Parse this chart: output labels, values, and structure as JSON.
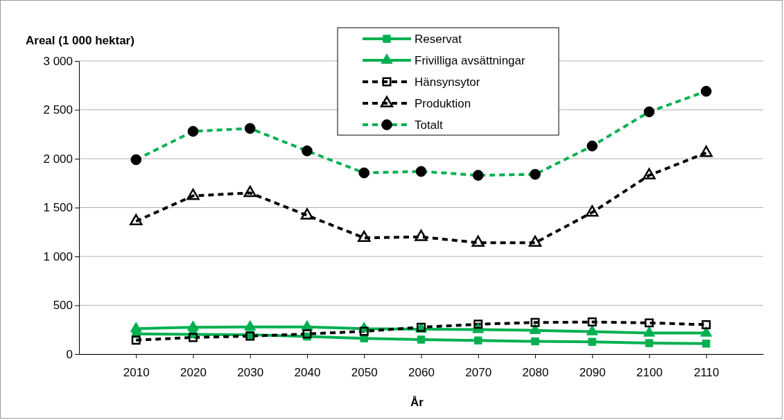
{
  "chart_data": {
    "type": "line",
    "ylabel": "Areal (1 000 hektar)",
    "xlabel": "År",
    "x": [
      2010,
      2020,
      2030,
      2040,
      2050,
      2060,
      2070,
      2080,
      2090,
      2100,
      2110
    ],
    "xlim": [
      2000,
      2120
    ],
    "xticks": [
      2010,
      2020,
      2030,
      2040,
      2050,
      2060,
      2070,
      2080,
      2090,
      2100,
      2110
    ],
    "ylim": [
      0,
      3000
    ],
    "yticks": [
      0,
      500,
      {
        "value": 1000,
        "label": "1 000"
      },
      {
        "value": 1500,
        "label": "1 500"
      },
      {
        "value": 2000,
        "label": "2 000"
      },
      {
        "value": 2500,
        "label": "2 500"
      },
      {
        "value": 3000,
        "label": "3 000"
      }
    ],
    "grid": "y",
    "legend": "top",
    "series": [
      {
        "name": "Reservat",
        "color": "#00b050",
        "marker": "square",
        "line_style": "solid",
        "values": [
          207,
          203,
          198,
          180,
          162,
          149,
          140,
          131,
          126,
          113,
          108
        ]
      },
      {
        "name": "Frivilliga avsättningar",
        "color": "#00b050",
        "marker": "triangle",
        "line_style": "solid",
        "values": [
          261,
          275,
          279,
          279,
          261,
          256,
          252,
          243,
          230,
          216,
          216
        ]
      },
      {
        "name": "Hänsynsytor",
        "color": "#000000",
        "marker": "square",
        "line_style": "dashed",
        "values": [
          144,
          171,
          185,
          207,
          234,
          275,
          306,
          324,
          329,
          320,
          302
        ]
      },
      {
        "name": "Produktion",
        "color": "#000000",
        "marker": "triangle",
        "line_style": "dashed",
        "values": [
          1360,
          1620,
          1650,
          1420,
          1190,
          1200,
          1140,
          1140,
          1450,
          1830,
          2060
        ]
      },
      {
        "name": "Totalt",
        "color": "#00b050",
        "marker": "circle",
        "line_style": "dashed",
        "values": [
          1990,
          2280,
          2310,
          2080,
          1855,
          1870,
          1830,
          1840,
          2130,
          2480,
          2690
        ]
      }
    ]
  }
}
